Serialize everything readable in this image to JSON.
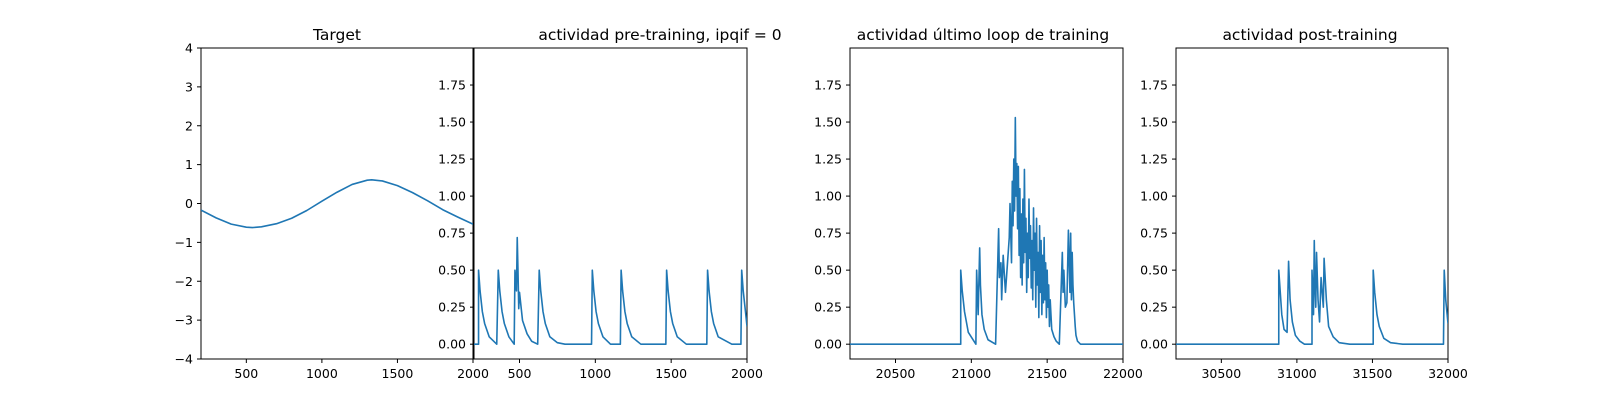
{
  "chart_data": [
    {
      "type": "line",
      "title": "Target",
      "xlabel": "",
      "ylabel": "",
      "xlim": [
        200,
        2000
      ],
      "ylim": [
        -4,
        4
      ],
      "xticks": [
        500,
        1000,
        1500,
        2000
      ],
      "xtick_labels": [
        "500",
        "1000",
        "1500",
        "2000"
      ],
      "yticks": [
        -4,
        -3,
        -2,
        -1,
        0,
        1,
        2,
        3,
        4
      ],
      "ytick_labels": [
        "−4",
        "−3",
        "−2",
        "−1",
        "0",
        "1",
        "2",
        "3",
        "4"
      ],
      "grid": false,
      "series": [
        {
          "color": "#1f77b4",
          "x": [
            200,
            300,
            400,
            500,
            540,
            600,
            700,
            800,
            900,
            1000,
            1100,
            1200,
            1300,
            1330,
            1400,
            1500,
            1600,
            1700,
            1800,
            1900,
            2000
          ],
          "y": [
            -0.17,
            -0.37,
            -0.53,
            -0.61,
            -0.62,
            -0.6,
            -0.52,
            -0.38,
            -0.18,
            0.06,
            0.29,
            0.49,
            0.6,
            0.61,
            0.58,
            0.46,
            0.28,
            0.07,
            -0.16,
            -0.35,
            -0.53
          ]
        }
      ]
    },
    {
      "type": "line",
      "title": "actividad pre-training, ipqif = 0",
      "xlabel": "",
      "ylabel": "",
      "xlim": [
        200,
        2000
      ],
      "ylim": [
        -0.1,
        2.0
      ],
      "xticks": [
        500,
        1000,
        1500,
        2000
      ],
      "xtick_labels": [
        "500",
        "1000",
        "1500",
        "2000"
      ],
      "yticks": [
        0,
        0.25,
        0.5,
        0.75,
        1.0,
        1.25,
        1.5,
        1.75
      ],
      "ytick_labels": [
        "0.00",
        "0.25",
        "0.50",
        "0.75",
        "1.00",
        "1.25",
        "1.50",
        "1.75"
      ],
      "grid": false,
      "series": [
        {
          "color": "#1f77b4",
          "x": [
            200,
            230,
            230,
            240,
            255,
            270,
            300,
            350,
            360,
            370,
            385,
            400,
            430,
            465,
            470,
            480,
            485,
            490,
            495,
            500,
            520,
            550,
            580,
            620,
            630,
            640,
            655,
            670,
            700,
            750,
            800,
            900,
            975,
            980,
            990,
            1005,
            1020,
            1050,
            1100,
            1165,
            1170,
            1180,
            1195,
            1210,
            1240,
            1300,
            1400,
            1465,
            1470,
            1480,
            1495,
            1510,
            1540,
            1600,
            1700,
            1735,
            1740,
            1750,
            1765,
            1780,
            1810,
            1900,
            1960,
            1965,
            1975,
            1990,
            2000
          ],
          "y": [
            0,
            0,
            0.5,
            0.36,
            0.22,
            0.14,
            0.05,
            0,
            0.5,
            0.36,
            0.22,
            0.14,
            0.05,
            0,
            0.5,
            0.36,
            0.72,
            0.5,
            0.24,
            0.35,
            0.16,
            0.07,
            0.02,
            0,
            0.5,
            0.36,
            0.22,
            0.14,
            0.05,
            0.01,
            0,
            0,
            0,
            0.5,
            0.36,
            0.22,
            0.14,
            0.05,
            0,
            0,
            0.5,
            0.36,
            0.22,
            0.14,
            0.05,
            0,
            0,
            0,
            0.5,
            0.36,
            0.22,
            0.14,
            0.05,
            0,
            0,
            0,
            0.5,
            0.36,
            0.22,
            0.14,
            0.05,
            0,
            0,
            0.5,
            0.36,
            0.22,
            0.12
          ]
        }
      ]
    },
    {
      "type": "line",
      "title": "actividad último loop de training",
      "xlabel": "",
      "ylabel": "",
      "xlim": [
        20200,
        22000
      ],
      "ylim": [
        -0.1,
        2.0
      ],
      "xticks": [
        20500,
        21000,
        21500,
        22000
      ],
      "xtick_labels": [
        "20500",
        "21000",
        "21500",
        "22000"
      ],
      "yticks": [
        0,
        0.25,
        0.5,
        0.75,
        1.0,
        1.25,
        1.5,
        1.75
      ],
      "ytick_labels": [
        "0.00",
        "0.25",
        "0.50",
        "0.75",
        "1.00",
        "1.25",
        "1.50",
        "1.75"
      ],
      "grid": false,
      "series": [
        {
          "color": "#1f77b4",
          "x": [
            20200,
            20930,
            20930,
            20940,
            20955,
            20980,
            21030,
            21035,
            21045,
            21055,
            21060,
            21070,
            21085,
            21110,
            21160,
            21180,
            21185,
            21195,
            21200,
            21210,
            21225,
            21250,
            21255,
            21265,
            21270,
            21275,
            21280,
            21285,
            21290,
            21295,
            21300,
            21305,
            21310,
            21315,
            21320,
            21325,
            21330,
            21335,
            21340,
            21345,
            21350,
            21355,
            21360,
            21365,
            21370,
            21375,
            21380,
            21385,
            21390,
            21395,
            21400,
            21405,
            21410,
            21415,
            21420,
            21425,
            21430,
            21435,
            21440,
            21445,
            21450,
            21455,
            21460,
            21465,
            21470,
            21475,
            21480,
            21485,
            21490,
            21495,
            21500,
            21505,
            21510,
            21515,
            21520,
            21530,
            21545,
            21560,
            21580,
            21600,
            21605,
            21610,
            21620,
            21630,
            21640,
            21650,
            21655,
            21660,
            21665,
            21670,
            21675,
            21680,
            21685,
            21690,
            21700,
            21720,
            21750,
            21800,
            22000
          ],
          "y": [
            0,
            0,
            0.5,
            0.36,
            0.22,
            0.08,
            0,
            0.5,
            0.2,
            0.65,
            0.4,
            0.2,
            0.1,
            0.03,
            0,
            0.78,
            0.45,
            0.55,
            0.3,
            0.6,
            0.35,
            0.72,
            0.95,
            0.55,
            1.1,
            0.8,
            1.25,
            0.9,
            1.53,
            1.0,
            1.22,
            0.78,
            1.2,
            0.6,
            1.05,
            0.45,
            0.88,
            0.4,
            0.98,
            0.55,
            1.18,
            0.62,
            0.85,
            0.35,
            0.75,
            0.45,
            0.98,
            0.58,
            0.8,
            0.38,
            0.7,
            0.3,
            0.92,
            0.5,
            0.75,
            0.25,
            0.85,
            0.4,
            0.62,
            0.18,
            0.8,
            0.35,
            0.7,
            0.2,
            0.6,
            0.28,
            0.72,
            0.3,
            0.55,
            0.18,
            0.5,
            0.25,
            0.4,
            0.12,
            0.3,
            0.1,
            0.05,
            0.02,
            0,
            0.62,
            0.35,
            0.5,
            0.25,
            0.28,
            0.77,
            0.35,
            0.75,
            0.3,
            0.62,
            0.4,
            0.28,
            0.2,
            0.12,
            0.06,
            0.02,
            0,
            0,
            0,
            0
          ]
        }
      ]
    },
    {
      "type": "line",
      "title": "actividad post-training",
      "xlabel": "",
      "ylabel": "",
      "xlim": [
        30200,
        32000
      ],
      "ylim": [
        -0.1,
        2.0
      ],
      "xticks": [
        30500,
        31000,
        31500,
        32000
      ],
      "xtick_labels": [
        "30500",
        "31000",
        "31500",
        "32000"
      ],
      "yticks": [
        0,
        0.25,
        0.5,
        0.75,
        1.0,
        1.25,
        1.5,
        1.75
      ],
      "ytick_labels": [
        "0.00",
        "0.25",
        "0.50",
        "0.75",
        "1.00",
        "1.25",
        "1.50",
        "1.75"
      ],
      "grid": false,
      "series": [
        {
          "color": "#1f77b4",
          "x": [
            30200,
            30880,
            30880,
            30890,
            30900,
            30915,
            30935,
            30945,
            30955,
            30970,
            30990,
            31020,
            31050,
            31100,
            31100,
            31110,
            31115,
            31120,
            31125,
            31130,
            31140,
            31150,
            31160,
            31175,
            31180,
            31195,
            31210,
            31240,
            31280,
            31350,
            31505,
            31505,
            31515,
            31530,
            31545,
            31575,
            31620,
            31700,
            31970,
            31975,
            31985,
            32000
          ],
          "y": [
            0,
            0,
            0.5,
            0.35,
            0.2,
            0.1,
            0.08,
            0.56,
            0.3,
            0.15,
            0.06,
            0.02,
            0,
            0,
            0.5,
            0.2,
            0.7,
            0.4,
            0.25,
            0.62,
            0.3,
            0.15,
            0.45,
            0.25,
            0.58,
            0.3,
            0.12,
            0.05,
            0.01,
            0,
            0,
            0.5,
            0.35,
            0.2,
            0.12,
            0.04,
            0.01,
            0,
            0,
            0.5,
            0.3,
            0.14
          ]
        }
      ]
    }
  ]
}
